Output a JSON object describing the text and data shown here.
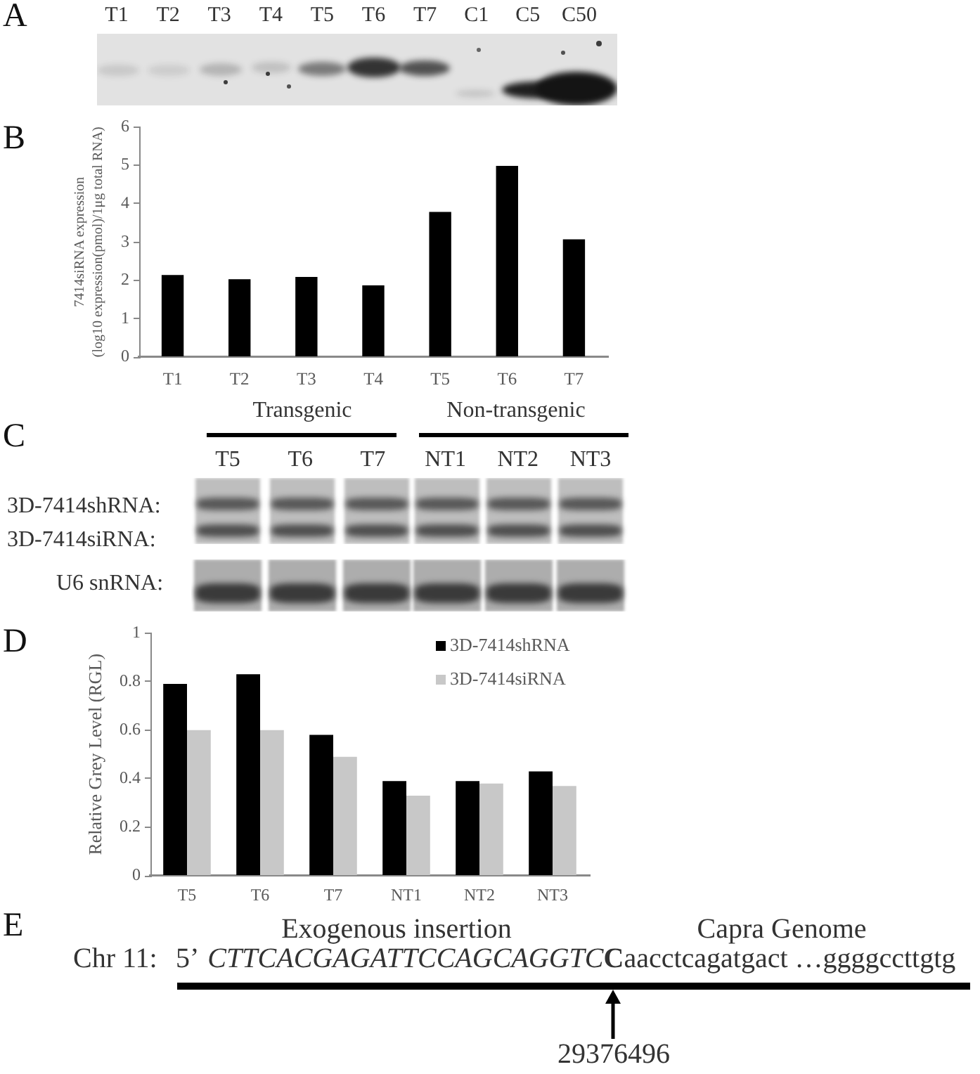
{
  "chart_data": [
    {
      "type": "other",
      "title": "A",
      "categories": [
        "T1",
        "T2",
        "T3",
        "T4",
        "T5",
        "T6",
        "T7",
        "C1",
        "C5",
        "C50"
      ]
    },
    {
      "type": "bar",
      "title": "B",
      "ylabel": "7414siRNA expression\n(log10 expression(pmol)/1μg total RNA)",
      "categories": [
        "T1",
        "T2",
        "T3",
        "T4",
        "T5",
        "T6",
        "T7"
      ],
      "values": [
        2.14,
        2.03,
        2.09,
        1.87,
        3.78,
        4.98,
        3.07
      ],
      "color": "#000000",
      "ylim": [
        0,
        6
      ],
      "yticks": [
        0,
        1,
        2,
        3,
        4,
        5,
        6
      ]
    },
    {
      "type": "other",
      "title": "C",
      "categories": [
        "T5",
        "T6",
        "T7",
        "NT1",
        "NT2",
        "NT3"
      ],
      "annotations": [
        "Transgenic",
        "Non-transgenic",
        "3D-7414shRNA:",
        "3D-7414siRNA:",
        "U6 snRNA:"
      ]
    },
    {
      "type": "bar",
      "title": "D",
      "ylabel": "Relative Grey Level (RGL)",
      "categories": [
        "T5",
        "T6",
        "T7",
        "NT1",
        "NT2",
        "NT3"
      ],
      "series": [
        {
          "name": "3D-7414shRNA",
          "color": "#000000",
          "values": [
            0.79,
            0.83,
            0.58,
            0.39,
            0.39,
            0.43
          ]
        },
        {
          "name": "3D-7414siRNA",
          "color": "#c8c8c8",
          "values": [
            0.6,
            0.6,
            0.49,
            0.33,
            0.38,
            0.37
          ]
        }
      ],
      "ylim": [
        0,
        1
      ],
      "yticks": [
        0,
        0.2,
        0.4,
        0.6,
        0.8,
        1
      ],
      "legend": "top right"
    },
    {
      "type": "other",
      "title": "E",
      "annotations": [
        "Exogenous insertion",
        "Capra Genome",
        "Chr 11:",
        "5’",
        "CTTCACGAGATTCCAGCAGGTC",
        "C",
        "aacctcagatgact …ggggccttgtg",
        "29376496"
      ]
    }
  ]
}
